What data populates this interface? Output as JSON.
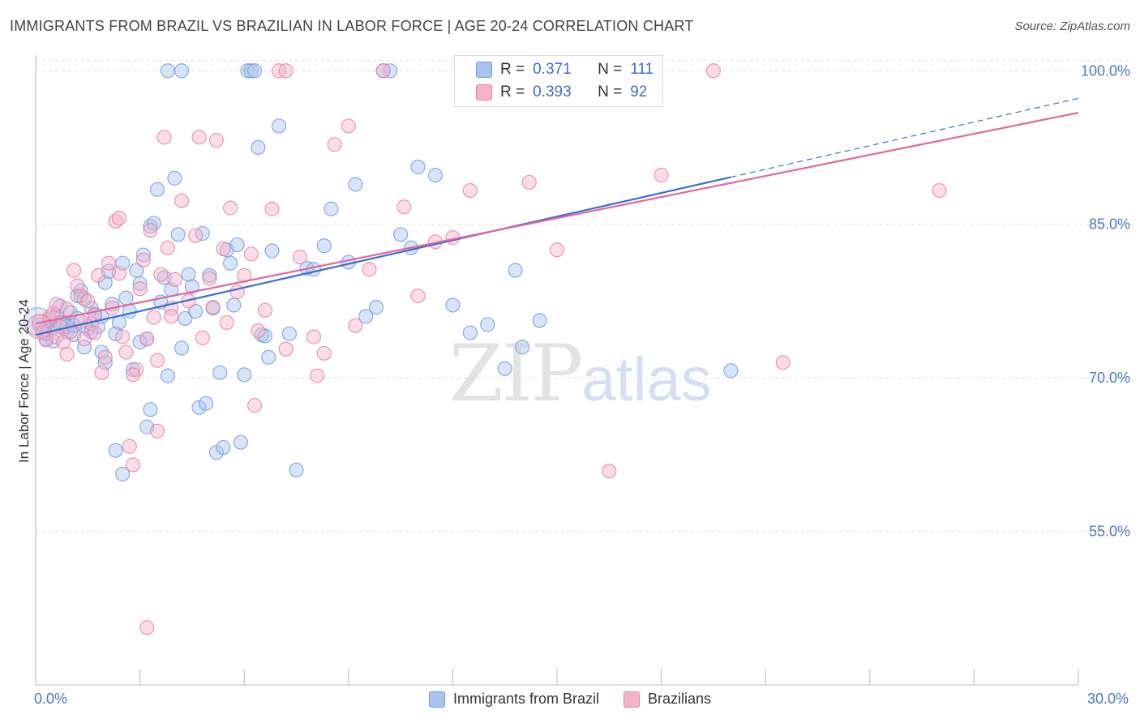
{
  "header": {
    "title": "IMMIGRANTS FROM BRAZIL VS BRAZILIAN IN LABOR FORCE | AGE 20-24 CORRELATION CHART",
    "source": "Source: ZipAtlas.com"
  },
  "legend_box": {
    "rows": [
      {
        "r_label": "R =",
        "r_value": "0.371",
        "n_label": "N =",
        "n_value": "111"
      },
      {
        "r_label": "R =",
        "r_value": "0.393",
        "n_label": "N =",
        "n_value": "92"
      }
    ]
  },
  "watermark": {
    "zip": "ZIP",
    "atlas": "atlas"
  },
  "colors": {
    "blue": "#6f9be0",
    "blue_fill": "#a9c4ee",
    "pink": "#e87fa4",
    "pink_fill": "#f4b3c9",
    "blue_line": "#3a6fd0",
    "pink_line": "#e0689a",
    "grid": "#dddddd",
    "tick_text": "#4a78c8"
  },
  "chart_data": {
    "type": "scatter",
    "xlabel": "",
    "ylabel": "In Labor Force | Age 20-24",
    "xlim": [
      0,
      30
    ],
    "ylim": [
      40,
      102
    ],
    "x_tick_labels": [
      "0.0%",
      "30.0%"
    ],
    "y_ticks": [
      55,
      70,
      85,
      100
    ],
    "y_tick_labels": [
      "55.0%",
      "70.0%",
      "85.0%",
      "100.0%"
    ],
    "grid": true,
    "legend_position": "bottom",
    "series": [
      {
        "name": "Immigrants from Brazil",
        "color": "#6f9be0",
        "trend": {
          "x0": 0,
          "y0": 74.2,
          "x1": 20.0,
          "y1": 89.6,
          "dashed_to_x": 30,
          "dashed_to_y": 97.3
        },
        "points": [
          [
            0.1,
            75.2
          ],
          [
            0.2,
            74.6
          ],
          [
            0.3,
            73.8
          ],
          [
            0.4,
            75.5
          ],
          [
            0.5,
            74.9
          ],
          [
            0.6,
            76.1
          ],
          [
            0.7,
            77.0
          ],
          [
            0.8,
            75.3
          ],
          [
            0.9,
            74.5
          ],
          [
            1.0,
            76.4
          ],
          [
            1.1,
            74.2
          ],
          [
            1.2,
            75.8
          ],
          [
            1.3,
            78.5
          ],
          [
            1.4,
            73.0
          ],
          [
            1.5,
            74.8
          ],
          [
            1.6,
            76.8
          ],
          [
            1.7,
            76.2
          ],
          [
            1.8,
            75.0
          ],
          [
            1.9,
            72.5
          ],
          [
            2.0,
            79.3
          ],
          [
            2.1,
            80.4
          ],
          [
            2.2,
            77.2
          ],
          [
            2.3,
            74.3
          ],
          [
            2.4,
            75.4
          ],
          [
            2.5,
            81.2
          ],
          [
            2.6,
            77.8
          ],
          [
            2.7,
            76.5
          ],
          [
            2.8,
            70.8
          ],
          [
            2.9,
            80.5
          ],
          [
            3.0,
            79.2
          ],
          [
            3.1,
            82.0
          ],
          [
            3.2,
            73.8
          ],
          [
            3.3,
            84.8
          ],
          [
            3.4,
            85.1
          ],
          [
            3.5,
            88.4
          ],
          [
            3.6,
            77.4
          ],
          [
            3.7,
            79.8
          ],
          [
            3.8,
            70.2
          ],
          [
            3.9,
            78.6
          ],
          [
            4.0,
            89.5
          ],
          [
            4.1,
            84.0
          ],
          [
            4.2,
            72.9
          ],
          [
            4.3,
            75.8
          ],
          [
            4.4,
            80.1
          ],
          [
            4.5,
            78.9
          ],
          [
            4.6,
            76.5
          ],
          [
            4.7,
            67.1
          ],
          [
            4.8,
            84.1
          ],
          [
            4.9,
            67.5
          ],
          [
            5.0,
            80.0
          ],
          [
            5.1,
            76.8
          ],
          [
            5.2,
            62.7
          ],
          [
            5.3,
            70.5
          ],
          [
            5.4,
            63.2
          ],
          [
            5.5,
            82.5
          ],
          [
            5.6,
            81.2
          ],
          [
            5.7,
            77.1
          ],
          [
            5.8,
            83.0
          ],
          [
            5.9,
            63.7
          ],
          [
            6.0,
            70.3
          ],
          [
            6.1,
            100.0
          ],
          [
            6.2,
            100.0
          ],
          [
            6.3,
            100.0
          ],
          [
            6.4,
            92.5
          ],
          [
            6.5,
            74.2
          ],
          [
            6.6,
            74.1
          ],
          [
            6.7,
            72.0
          ],
          [
            6.8,
            82.4
          ],
          [
            7.0,
            94.6
          ],
          [
            7.3,
            74.3
          ],
          [
            7.5,
            61.0
          ],
          [
            7.8,
            80.7
          ],
          [
            8.0,
            80.6
          ],
          [
            8.3,
            82.9
          ],
          [
            8.5,
            86.5
          ],
          [
            9.0,
            81.3
          ],
          [
            9.2,
            88.9
          ],
          [
            9.5,
            76.0
          ],
          [
            9.8,
            76.9
          ],
          [
            10.0,
            100.0
          ],
          [
            10.2,
            100.0
          ],
          [
            10.5,
            84.0
          ],
          [
            10.8,
            82.7
          ],
          [
            11.0,
            90.6
          ],
          [
            11.5,
            89.8
          ],
          [
            12.0,
            77.1
          ],
          [
            12.5,
            74.4
          ],
          [
            13.0,
            75.2
          ],
          [
            13.5,
            70.9
          ],
          [
            13.8,
            80.5
          ],
          [
            14.0,
            73.0
          ],
          [
            14.5,
            75.6
          ],
          [
            3.2,
            65.2
          ],
          [
            3.3,
            66.9
          ],
          [
            2.3,
            62.9
          ],
          [
            2.5,
            60.6
          ],
          [
            3.0,
            73.5
          ],
          [
            3.8,
            100.0
          ],
          [
            4.2,
            100.0
          ],
          [
            1.2,
            78.0
          ],
          [
            0.5,
            73.6
          ],
          [
            0.7,
            75.4
          ],
          [
            1.6,
            74.5
          ],
          [
            2.0,
            71.5
          ],
          [
            1.9,
            76.0
          ],
          [
            0.9,
            75.0
          ],
          [
            1.4,
            77.7
          ],
          [
            0.3,
            74.3
          ],
          [
            0.4,
            75.7
          ],
          [
            1.1,
            75.1
          ],
          [
            20.0,
            70.7
          ]
        ]
      },
      {
        "name": "Brazilians",
        "color": "#e87fa4",
        "trend": {
          "x0": 0,
          "y0": 75.3,
          "x1": 30,
          "y1": 95.9
        },
        "points": [
          [
            0.1,
            75.5
          ],
          [
            0.2,
            74.4
          ],
          [
            0.3,
            73.7
          ],
          [
            0.4,
            75.9
          ],
          [
            0.5,
            76.3
          ],
          [
            0.6,
            74.0
          ],
          [
            0.7,
            75.0
          ],
          [
            0.8,
            73.5
          ],
          [
            0.9,
            76.7
          ],
          [
            1.0,
            74.5
          ],
          [
            1.1,
            80.5
          ],
          [
            1.2,
            79.0
          ],
          [
            1.3,
            78.0
          ],
          [
            1.4,
            73.8
          ],
          [
            1.5,
            77.5
          ],
          [
            1.6,
            75.3
          ],
          [
            1.7,
            76.1
          ],
          [
            1.8,
            80.0
          ],
          [
            1.9,
            70.5
          ],
          [
            2.0,
            72.0
          ],
          [
            2.1,
            81.2
          ],
          [
            2.2,
            76.8
          ],
          [
            2.3,
            85.3
          ],
          [
            2.4,
            85.6
          ],
          [
            2.5,
            74.0
          ],
          [
            2.6,
            72.5
          ],
          [
            2.7,
            63.3
          ],
          [
            2.8,
            61.5
          ],
          [
            2.9,
            70.8
          ],
          [
            3.0,
            78.7
          ],
          [
            3.1,
            81.5
          ],
          [
            3.2,
            73.8
          ],
          [
            3.3,
            84.4
          ],
          [
            3.4,
            75.9
          ],
          [
            3.5,
            71.7
          ],
          [
            3.6,
            80.1
          ],
          [
            3.7,
            93.5
          ],
          [
            3.8,
            82.7
          ],
          [
            3.9,
            76.8
          ],
          [
            4.0,
            79.6
          ],
          [
            4.2,
            87.3
          ],
          [
            4.4,
            77.5
          ],
          [
            4.6,
            83.9
          ],
          [
            4.8,
            73.9
          ],
          [
            5.0,
            79.7
          ],
          [
            5.1,
            76.9
          ],
          [
            5.2,
            93.2
          ],
          [
            5.4,
            82.6
          ],
          [
            5.6,
            86.6
          ],
          [
            5.8,
            78.4
          ],
          [
            6.0,
            80.0
          ],
          [
            6.2,
            82.1
          ],
          [
            6.4,
            74.6
          ],
          [
            6.6,
            76.6
          ],
          [
            6.8,
            86.5
          ],
          [
            7.0,
            100.0
          ],
          [
            7.2,
            100.0
          ],
          [
            7.6,
            81.8
          ],
          [
            8.0,
            74.0
          ],
          [
            8.3,
            72.4
          ],
          [
            8.6,
            92.8
          ],
          [
            9.0,
            94.6
          ],
          [
            9.2,
            75.1
          ],
          [
            9.6,
            80.6
          ],
          [
            10.0,
            100.0
          ],
          [
            10.6,
            86.7
          ],
          [
            11.0,
            78.0
          ],
          [
            11.5,
            83.3
          ],
          [
            12.0,
            83.7
          ],
          [
            12.5,
            88.3
          ],
          [
            13.0,
            100.0
          ],
          [
            14.2,
            89.1
          ],
          [
            15.0,
            82.5
          ],
          [
            16.5,
            60.9
          ],
          [
            18.0,
            89.8
          ],
          [
            19.5,
            100.0
          ],
          [
            21.5,
            71.5
          ],
          [
            26.0,
            88.3
          ],
          [
            3.2,
            45.6
          ],
          [
            3.5,
            64.8
          ],
          [
            2.8,
            70.3
          ],
          [
            1.3,
            75.5
          ],
          [
            0.9,
            72.3
          ],
          [
            1.7,
            74.4
          ],
          [
            2.4,
            80.2
          ],
          [
            0.6,
            77.2
          ],
          [
            3.9,
            76.0
          ],
          [
            4.7,
            93.5
          ],
          [
            5.5,
            75.4
          ],
          [
            6.3,
            67.3
          ],
          [
            7.2,
            72.8
          ],
          [
            8.1,
            70.2
          ]
        ]
      }
    ]
  }
}
